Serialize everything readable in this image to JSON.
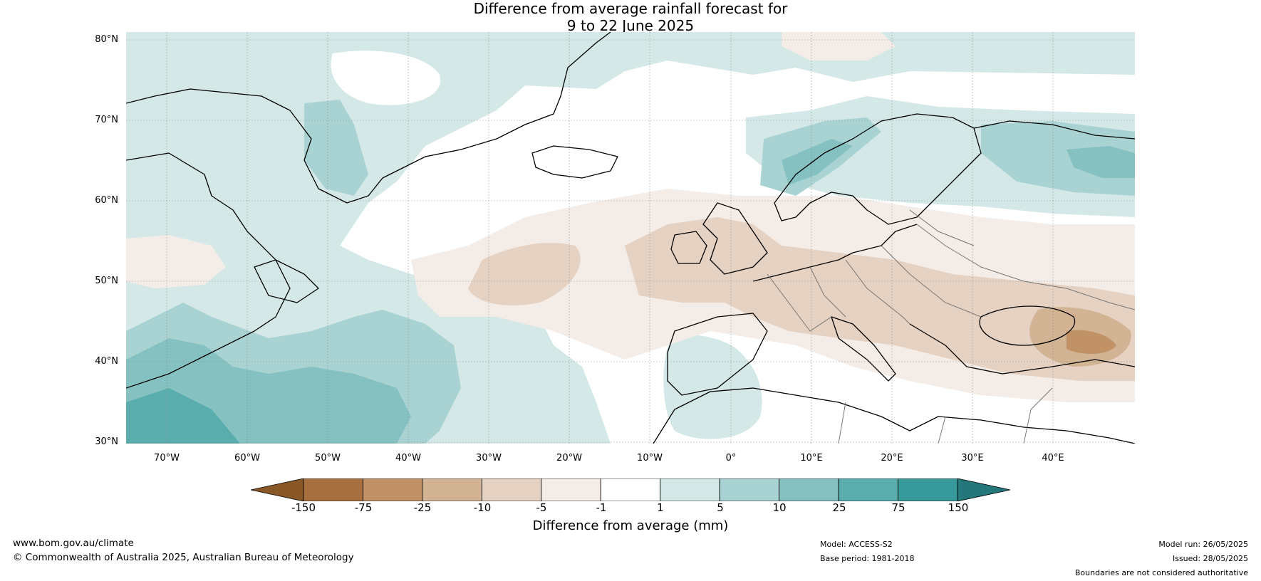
{
  "title": {
    "line1": "Difference from average rainfall forecast for",
    "line2": "9 to 22 June 2025"
  },
  "map": {
    "lat_labels": [
      "80°N",
      "70°N",
      "60°N",
      "50°N",
      "40°N",
      "30°N"
    ],
    "lon_labels": [
      "70°W",
      "60°W",
      "50°W",
      "40°W",
      "30°W",
      "20°W",
      "10°W",
      "0°",
      "10°E",
      "20°E",
      "30°E",
      "40°E"
    ],
    "extent": {
      "lon_min": -75,
      "lon_max": 50,
      "lat_min": 30,
      "lat_max": 81
    }
  },
  "legend": {
    "title": "Difference from average (mm)",
    "ticks": [
      "-150",
      "-75",
      "-25",
      "-10",
      "-5",
      "-1",
      "1",
      "5",
      "10",
      "25",
      "75",
      "150"
    ],
    "colors": {
      "below_min": "#8a5726",
      "bins": [
        "#a87040",
        "#c09266",
        "#d2b394",
        "#e6d2c2",
        "#f3ece7",
        "#ffffff",
        "#d4e8e8",
        "#a9d3d3",
        "#85c1c1",
        "#5aadad",
        "#389a9a"
      ],
      "above_max": "#24777a"
    }
  },
  "footer": {
    "website": "www.bom.gov.au/climate",
    "copyright": "© Commonwealth of Australia 2025, Australian Bureau of Meteorology",
    "model": "Model: ACCESS-S2",
    "base_period": "Base period: 1981-2018",
    "model_run": "Model run: 26/05/2025",
    "issued": "Issued: 28/05/2025",
    "boundaries_note": "Boundaries are not considered authoritative"
  }
}
